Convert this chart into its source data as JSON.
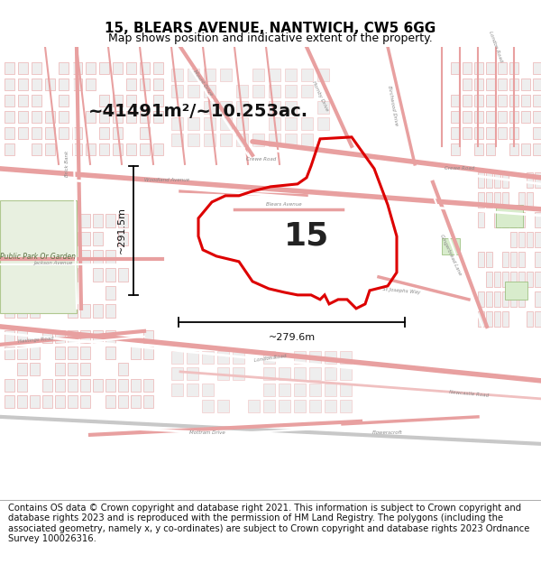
{
  "title": "15, BLEARS AVENUE, NANTWICH, CW5 6GG",
  "subtitle": "Map shows position and indicative extent of the property.",
  "area_label": "~41491m²/~10.253ac.",
  "plot_number": "15",
  "width_label": "~279.6m",
  "height_label": "~291.5m",
  "footer_text": "Contains OS data © Crown copyright and database right 2021. This information is subject to Crown copyright and database rights 2023 and is reproduced with the permission of HM Land Registry. The polygons (including the associated geometry, namely x, y co-ordinates) are subject to Crown copyright and database rights 2023 Ordnance Survey 100026316.",
  "background_color": "#ffffff",
  "title_fontsize": 11,
  "subtitle_fontsize": 9,
  "footer_fontsize": 7.2,
  "map_road_color": "#e8a0a0",
  "map_road_color2": "#f0c0c0",
  "map_building_color": "#d0d0d0",
  "map_bg": "#ffffff",
  "plot_edge_color": "#dd0000",
  "plot_fill": "none",
  "dim_line_color": "#000000",
  "label_color": "#111111"
}
